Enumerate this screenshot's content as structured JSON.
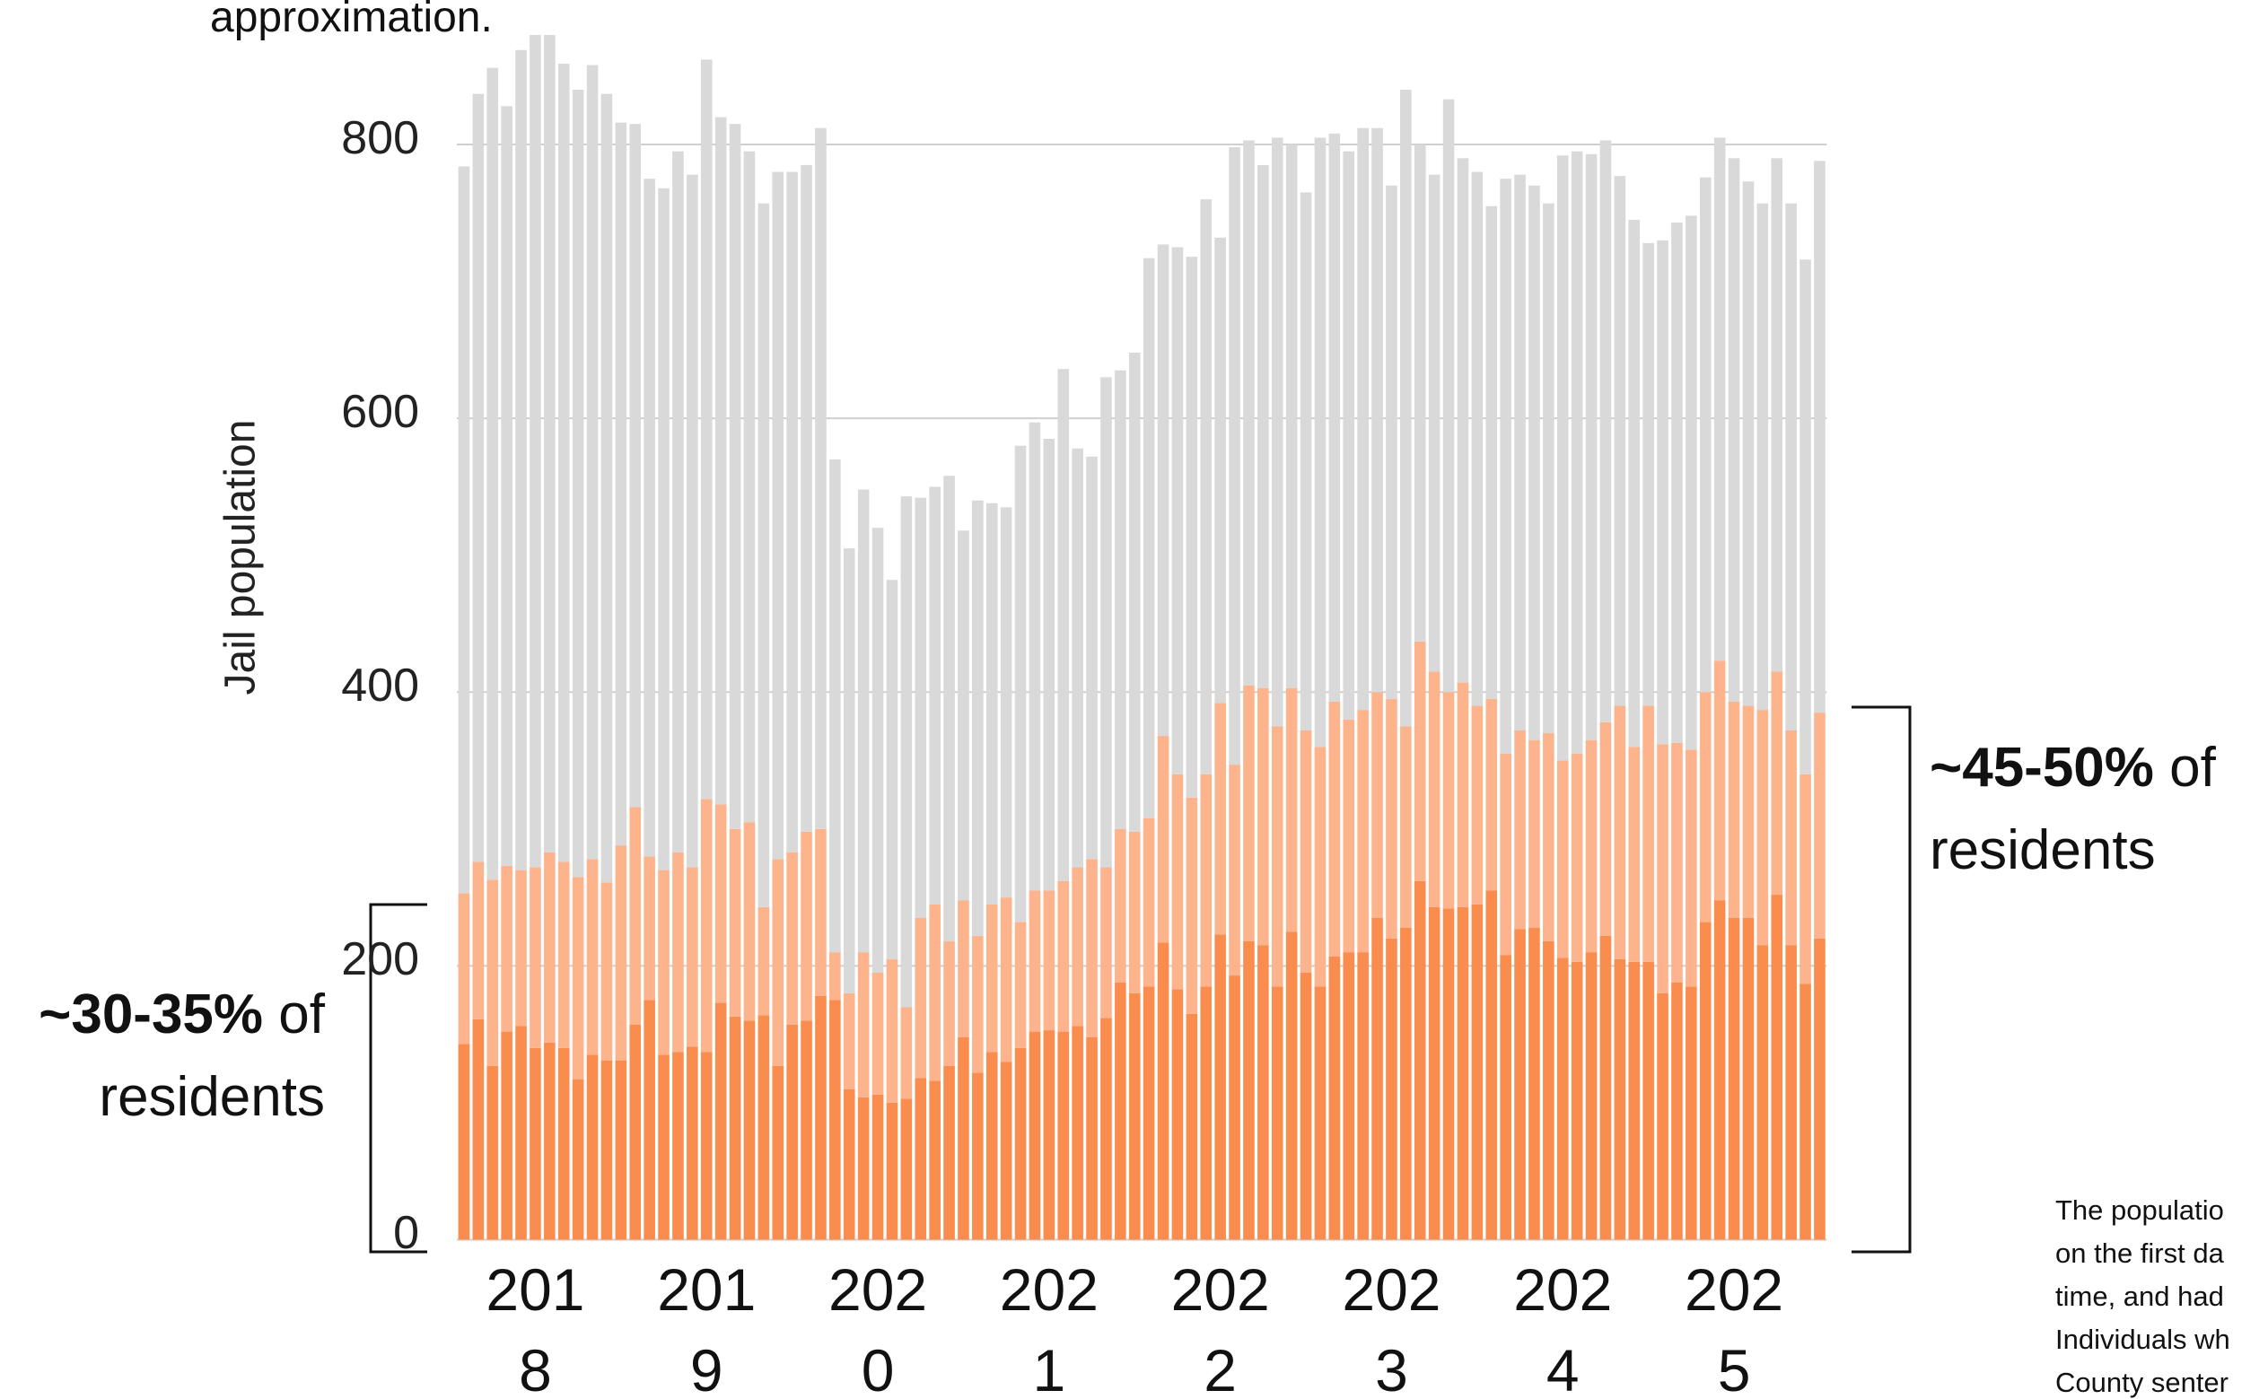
{
  "chart_data": {
    "type": "stacked_bar",
    "subtitle": "approximation.",
    "y_label": "Jail population",
    "categories": [
      null,
      null,
      null,
      null,
      null,
      "2018",
      null,
      null,
      null,
      null,
      null,
      null,
      null,
      null,
      null,
      null,
      null,
      "2019",
      null,
      null,
      null,
      null,
      null,
      null,
      null,
      null,
      null,
      null,
      null,
      "2020",
      null,
      null,
      null,
      null,
      null,
      null,
      null,
      null,
      null,
      null,
      null,
      "2021",
      null,
      null,
      null,
      null,
      null,
      null,
      null,
      null,
      null,
      null,
      null,
      "2022",
      null,
      null,
      null,
      null,
      null,
      null,
      null,
      null,
      null,
      null,
      null,
      "2023",
      null,
      null,
      null,
      null,
      null,
      null,
      null,
      null,
      null,
      null,
      null,
      "2024",
      null,
      null,
      null,
      null,
      null,
      null,
      null,
      null,
      null,
      null,
      null,
      "2025",
      null,
      null,
      null,
      null,
      null,
      null
    ],
    "series": [
      {
        "color": "#fa8c4d",
        "values": [
          143,
          161,
          127,
          152,
          156,
          140,
          144,
          140,
          117,
          135,
          131,
          131,
          157,
          175,
          135,
          137,
          141,
          137,
          173,
          163,
          160,
          164,
          127,
          157,
          160,
          178,
          175,
          110,
          104,
          106,
          100,
          103,
          118,
          116,
          127,
          148,
          122,
          137,
          130,
          140,
          152,
          153,
          152,
          156,
          148,
          162,
          188,
          180,
          185,
          217,
          183,
          165,
          185,
          223,
          193,
          218,
          215,
          185,
          225,
          195,
          185,
          207,
          210,
          210,
          235,
          220,
          228,
          262,
          243,
          242,
          243,
          245,
          255,
          208,
          227,
          228,
          218,
          206,
          203,
          210,
          222,
          205,
          203,
          203,
          180,
          188,
          185,
          232,
          248,
          235,
          235,
          215,
          252,
          215,
          187,
          220
        ]
      },
      {
        "color": "#fdb48d",
        "values": [
          110,
          115,
          136,
          121,
          114,
          132,
          139,
          136,
          148,
          143,
          130,
          157,
          159,
          105,
          135,
          146,
          131,
          185,
          145,
          137,
          145,
          79,
          151,
          126,
          138,
          122,
          35,
          70,
          106,
          89,
          105,
          67,
          117,
          129,
          91,
          100,
          100,
          108,
          120,
          92,
          103,
          102,
          110,
          116,
          130,
          110,
          112,
          118,
          123,
          151,
          157,
          158,
          155,
          169,
          154,
          187,
          188,
          190,
          178,
          177,
          175,
          186,
          170,
          177,
          165,
          175,
          147,
          175,
          172,
          158,
          164,
          145,
          140,
          147,
          145,
          137,
          152,
          144,
          152,
          155,
          156,
          185,
          157,
          187,
          182,
          175,
          173,
          168,
          175,
          158,
          155,
          172,
          163,
          157,
          153,
          165
        ]
      },
      {
        "color": "#d9d9d9",
        "values": [
          531,
          561,
          593,
          555,
          599,
          608,
          597,
          583,
          575,
          580,
          576,
          528,
          499,
          495,
          498,
          512,
          506,
          540,
          502,
          515,
          490,
          514,
          502,
          497,
          487,
          512,
          360,
          325,
          338,
          325,
          277,
          373,
          307,
          305,
          340,
          270,
          318,
          293,
          285,
          348,
          342,
          330,
          374,
          306,
          294,
          358,
          335,
          350,
          409,
          359,
          385,
          395,
          420,
          340,
          451,
          398,
          382,
          430,
          397,
          393,
          445,
          415,
          415,
          425,
          412,
          375,
          465,
          363,
          363,
          433,
          383,
          390,
          360,
          420,
          406,
          405,
          387,
          442,
          440,
          428,
          425,
          387,
          385,
          338,
          368,
          380,
          390,
          376,
          382,
          397,
          383,
          370,
          375,
          385,
          376,
          403
        ]
      }
    ],
    "ylim": [
      0,
      880
    ],
    "yticks": [
      0,
      200,
      400,
      600,
      800
    ],
    "grid": true,
    "annotations": [
      {
        "bold": "~30-35%",
        "text": "of",
        "line2": "residents"
      },
      {
        "bold": "~45-50%",
        "text": "of",
        "line2": "residents"
      }
    ],
    "footnote": [
      "The populatio",
      "on the first da",
      "time, and had",
      "Individuals wh",
      "County senter"
    ]
  }
}
